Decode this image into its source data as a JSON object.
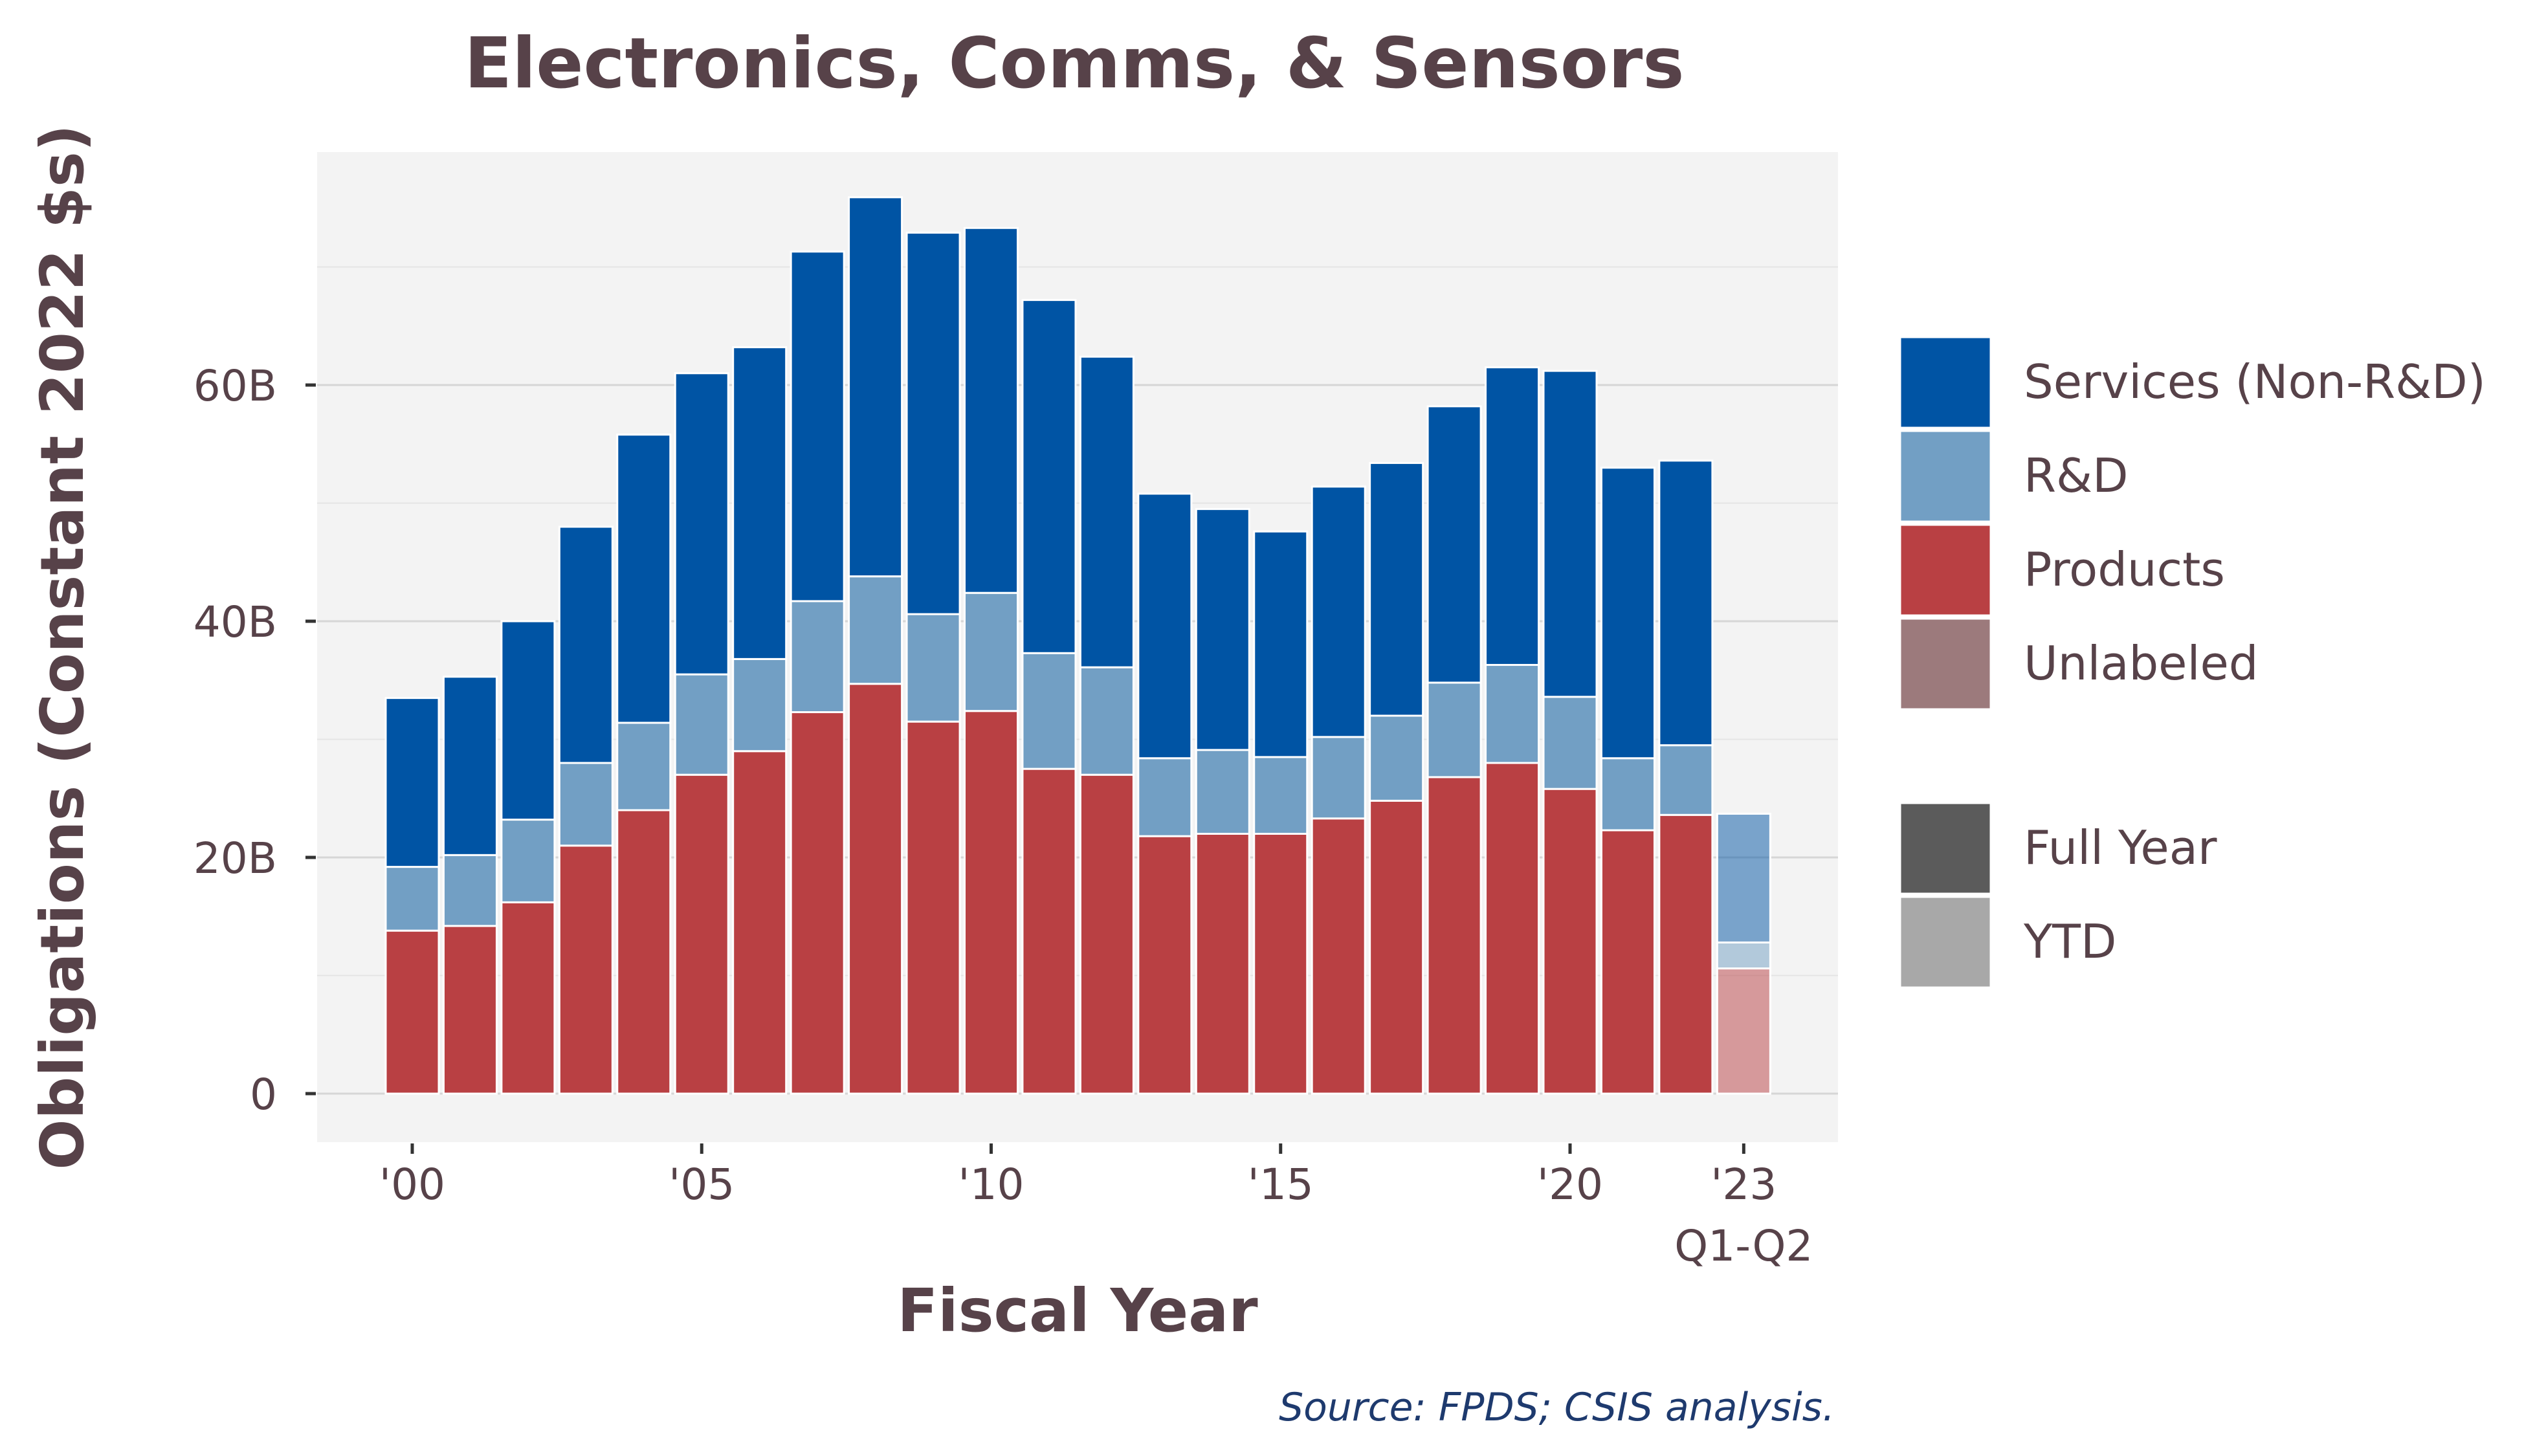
{
  "chart_data": {
    "type": "bar",
    "stacked": true,
    "title": "Electronics, Comms, & Sensors",
    "xlabel": "Fiscal Year",
    "ylabel": "Obligations (Constant 2022 $s)",
    "source": "Source: FPDS; CSIS analysis.",
    "ylim": [
      0,
      78
    ],
    "yticks": [
      0,
      20,
      40,
      60
    ],
    "ytick_labels": [
      "0",
      "20B",
      "40B",
      "60B"
    ],
    "x": [
      2000,
      2001,
      2002,
      2003,
      2004,
      2005,
      2006,
      2007,
      2008,
      2009,
      2010,
      2011,
      2012,
      2013,
      2014,
      2015,
      2016,
      2017,
      2018,
      2019,
      2020,
      2021,
      2022,
      2023
    ],
    "xticks": [
      2000,
      2005,
      2010,
      2015,
      2020,
      2023
    ],
    "xtick_labels": [
      "'00",
      "'05",
      "'10",
      "'15",
      "'20",
      "'23"
    ],
    "xtick_sublabel": {
      "x": 2023,
      "text": "Q1-Q2"
    },
    "period": [
      "Full Year",
      "Full Year",
      "Full Year",
      "Full Year",
      "Full Year",
      "Full Year",
      "Full Year",
      "Full Year",
      "Full Year",
      "Full Year",
      "Full Year",
      "Full Year",
      "Full Year",
      "Full Year",
      "Full Year",
      "Full Year",
      "Full Year",
      "Full Year",
      "Full Year",
      "Full Year",
      "Full Year",
      "Full Year",
      "Full Year",
      "YTD"
    ],
    "series": [
      {
        "name": "Products",
        "color": "#b94043",
        "values": [
          13.8,
          14.2,
          16.2,
          21.0,
          24.0,
          27.0,
          29.0,
          32.3,
          34.7,
          31.5,
          32.4,
          27.5,
          27.0,
          21.8,
          22.0,
          22.0,
          23.3,
          24.8,
          26.8,
          28.0,
          25.8,
          22.3,
          23.6,
          10.6
        ]
      },
      {
        "name": "R&D",
        "color": "#729fc4",
        "values": [
          5.4,
          6.0,
          7.0,
          7.0,
          7.4,
          8.5,
          7.8,
          9.4,
          9.1,
          9.1,
          10.0,
          9.8,
          9.1,
          6.6,
          7.1,
          6.5,
          6.9,
          7.2,
          8.0,
          8.3,
          7.8,
          6.1,
          5.9,
          2.2
        ]
      },
      {
        "name": "Services (Non-R&D)",
        "color": "#0054a4",
        "values": [
          14.3,
          15.1,
          16.8,
          20.0,
          24.4,
          25.5,
          26.4,
          29.6,
          32.1,
          32.3,
          30.9,
          29.9,
          26.3,
          22.4,
          20.4,
          19.1,
          21.2,
          21.4,
          23.4,
          25.2,
          27.6,
          24.6,
          24.1,
          10.9
        ]
      },
      {
        "name": "Unlabeled",
        "color": "#9c7a7c",
        "values": [
          0,
          0,
          0,
          0,
          0,
          0,
          0,
          0,
          0,
          0,
          0,
          0,
          0,
          0,
          0,
          0,
          0,
          0,
          0,
          0,
          0,
          0,
          0,
          0
        ]
      }
    ],
    "legend": {
      "position": "right",
      "fill_entries": [
        {
          "label": "Services (Non-R&D)",
          "color": "#0054a4"
        },
        {
          "label": "R&D",
          "color": "#729fc4"
        },
        {
          "label": "Products",
          "color": "#b94043"
        },
        {
          "label": "Unlabeled",
          "color": "#9c7a7c"
        }
      ],
      "alpha_entries": [
        {
          "label": "Full Year",
          "color": "#5b5b5b"
        },
        {
          "label": "YTD",
          "color": "#a8a8a8"
        }
      ]
    },
    "panel_color": "#f3f3f3",
    "grid": true
  }
}
